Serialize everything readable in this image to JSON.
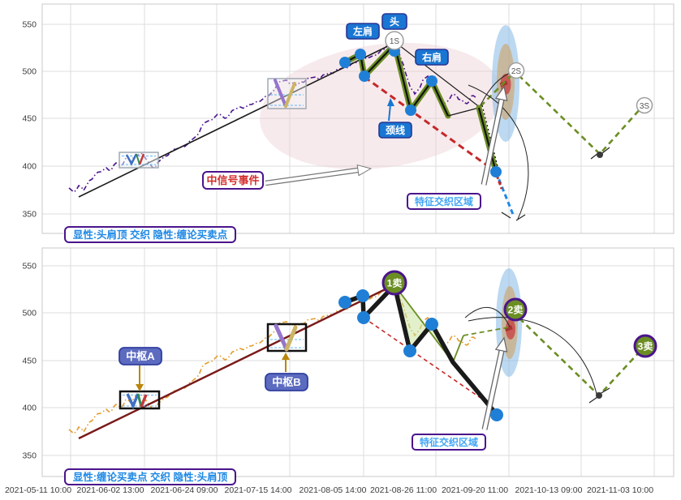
{
  "colors": {
    "accent_blue": "#1976d2",
    "purple_border": "#4a148c",
    "olive": "#6b8e23",
    "price_top": "#4a148c",
    "price_bottom": "#e39b2d",
    "red_dashed": "#c62828",
    "trend_top": "#1a1a1a",
    "trend_bottom": "#7a1a1a",
    "dot_blue": "#1f7fd6",
    "caption_text": "#1e88e5",
    "zone_text": "#42a5f5",
    "signal_text": "#d32f2f",
    "pivot_fill": "#5c6bc0",
    "highlight_outer": "#85b9e6",
    "highlight_mid": "#cfa265",
    "highlight_core": "#c84a4a"
  },
  "axes": {
    "y_ticks": [
      "550",
      "500",
      "450",
      "400",
      "350"
    ],
    "x_ticks": [
      "2021-05-11 10:00",
      "2021-06-02 13:00",
      "2021-06-24 09:00",
      "2021-07-15 14:00",
      "2021-08-05 14:00",
      "2021-08-26 11:00",
      "2021-09-20 11:00",
      "2021-10-13 09:00",
      "2021-11-03 10:00"
    ]
  },
  "top_panel": {
    "caption": "显性:头肩顶 交织 隐性:缠论买卖点",
    "labels": {
      "left_shoulder": "左肩",
      "head": "头",
      "right_shoulder": "右肩",
      "neckline": "颈线",
      "signal_event": "中信号事件",
      "feature_zone": "特征交织区域",
      "s1": "1S",
      "s2": "2S",
      "s3": "3S"
    }
  },
  "bottom_panel": {
    "caption": "显性:缠论买卖点 交织 隐性:头肩顶",
    "labels": {
      "pivot_a": "中枢A",
      "pivot_b": "中枢B",
      "sell1": "1卖",
      "sell2": "2卖",
      "sell3": "3卖",
      "feature_zone": "特征交织区域"
    }
  },
  "chart_data": [
    {
      "type": "line",
      "panel": "top",
      "caption": "显性:头肩顶 交织 隐性:缠论买卖点",
      "ylim": [
        330,
        570
      ],
      "grid": true,
      "x_ticks": [
        "2021-05-11 10:00",
        "2021-06-02 13:00",
        "2021-06-24 09:00",
        "2021-07-15 14:00",
        "2021-08-05 14:00",
        "2021-08-26 11:00",
        "2021-09-20 11:00",
        "2021-10-13 09:00",
        "2021-11-03 10:00"
      ],
      "series": [
        {
          "name": "价格走势(紫色点划线)",
          "style": "dashdot",
          "color": "#4a148c",
          "points": [
            [
              "2021-05-11",
              378
            ],
            [
              "2021-05-22",
              396
            ],
            [
              "2021-06-02",
              410
            ],
            [
              "2021-06-13",
              420
            ],
            [
              "2021-06-24",
              452
            ],
            [
              "2021-07-05",
              459
            ],
            [
              "2021-07-15",
              487
            ],
            [
              "2021-08-05",
              507
            ],
            [
              "2021-08-13",
              531
            ],
            [
              "2021-08-19",
              455
            ],
            [
              "2021-08-24",
              469
            ],
            [
              "2021-08-28",
              440
            ],
            [
              "2021-09-01",
              444
            ],
            [
              "2021-09-06",
              447
            ]
          ]
        },
        {
          "name": "上升趋势线",
          "style": "solid",
          "color": "#1a1a1a",
          "points": [
            [
              "2021-05-13",
              368
            ],
            [
              "2021-08-14",
              529
            ]
          ]
        },
        {
          "name": "头肩顶折线(粗橄榄)",
          "style": "solid-thick",
          "color": "#6b8e23",
          "points": [
            [
              "2021-07-31",
              510
            ],
            [
              "2021-08-04",
              518
            ],
            [
              "2021-08-05",
              495
            ],
            [
              "2021-08-13",
              528
            ],
            [
              "2021-08-19",
              459
            ],
            [
              "2021-08-25",
              490
            ],
            [
              "2021-08-30",
              453
            ],
            [
              "2021-09-08",
              461
            ],
            [
              "2021-09-15",
              395
            ]
          ]
        },
        {
          "name": "颈线延长线",
          "style": "dashed",
          "color": "#c62828",
          "points": [
            [
              "2021-08-05",
              494
            ],
            [
              "2021-09-15",
              395
            ]
          ]
        },
        {
          "name": "预测路径",
          "style": "dashed",
          "color": "#6b8e23",
          "points": [
            [
              "2021-09-08",
              461
            ],
            [
              "2021-09-22",
              502
            ],
            [
              "2021-10-18",
              412
            ],
            [
              "2021-11-01",
              465
            ]
          ]
        },
        {
          "name": "下破延伸",
          "style": "dashed",
          "color": "#1e88e5",
          "points": [
            [
              "2021-09-15",
              395
            ],
            [
              "2021-09-20",
              346
            ]
          ]
        }
      ],
      "annotations": {
        "left_shoulder": [
          "2021-08-04",
          518
        ],
        "head": [
          "2021-08-13",
          531
        ],
        "right_shoulder": [
          "2021-08-25",
          490
        ],
        "neckline": [
          "2021-08-19",
          459
        ],
        "signals": {
          "1S": [
            "2021-08-13",
            532
          ],
          "2S": [
            "2021-09-22",
            502
          ],
          "3S": [
            "2021-11-01",
            465
          ]
        },
        "boxes": [
          {
            "x": [
              "2021-05-25",
              "2021-06-06"
            ],
            "y": [
              399,
              415
            ]
          },
          {
            "x": [
              "2021-07-09",
              "2021-07-20"
            ],
            "y": [
              460,
              493
            ]
          }
        ]
      }
    },
    {
      "type": "line",
      "panel": "bottom",
      "caption": "显性:缠论买卖点 交织 隐性:头肩顶",
      "ylim": [
        330,
        570
      ],
      "grid": true,
      "series": [
        {
          "name": "价格走势(橙色点划线)",
          "style": "dashdot",
          "color": "#e39b2d",
          "points": [
            [
              "2021-05-11",
              379
            ],
            [
              "2021-05-22",
              396
            ],
            [
              "2021-06-02",
              410
            ],
            [
              "2021-06-13",
              420
            ],
            [
              "2021-06-24",
              452
            ],
            [
              "2021-07-05",
              459
            ],
            [
              "2021-07-15",
              487
            ],
            [
              "2021-08-05",
              507
            ],
            [
              "2021-08-13",
              530
            ],
            [
              "2021-08-19",
              456
            ],
            [
              "2021-08-24",
              469
            ],
            [
              "2021-08-28",
              440
            ],
            [
              "2021-09-06",
              447
            ]
          ]
        },
        {
          "name": "上升趋势线",
          "style": "solid",
          "color": "#7a1a1a",
          "points": [
            [
              "2021-05-13",
              368
            ],
            [
              "2021-08-14",
              530
            ]
          ]
        },
        {
          "name": "笔段折线(粗黑)",
          "style": "solid-thick",
          "color": "#1a1a1a",
          "points": [
            [
              "2021-07-31",
              512
            ],
            [
              "2021-08-04",
              516
            ],
            [
              "2021-08-05",
              495
            ],
            [
              "2021-08-13",
              529
            ],
            [
              "2021-08-19",
              460
            ],
            [
              "2021-08-25",
              488
            ],
            [
              "2021-08-31",
              448
            ],
            [
              "2021-09-15",
              396
            ]
          ]
        },
        {
          "name": "下降参考线",
          "style": "dashed",
          "color": "#c62828",
          "points": [
            [
              "2021-08-05",
              495
            ],
            [
              "2021-09-12",
              411
            ]
          ]
        },
        {
          "name": "预测路径",
          "style": "dashed",
          "color": "#6b8e23",
          "points": [
            [
              "2021-09-08",
              460
            ],
            [
              "2021-09-22",
              503
            ],
            [
              "2021-10-18",
              413
            ],
            [
              "2021-11-01",
              465
            ]
          ]
        }
      ],
      "annotations": {
        "sell_points": {
          "1卖": [
            "2021-08-13",
            532
          ],
          "2卖": [
            "2021-09-22",
            503
          ],
          "3卖": [
            "2021-11-01",
            465
          ]
        },
        "pivots": [
          {
            "name": "中枢A",
            "x": [
              "2021-05-25",
              "2021-06-06"
            ],
            "y": [
              400,
              417
            ]
          },
          {
            "name": "中枢B",
            "x": [
              "2021-07-09",
              "2021-07-20"
            ],
            "y": [
              460,
              488
            ]
          }
        ]
      }
    }
  ]
}
